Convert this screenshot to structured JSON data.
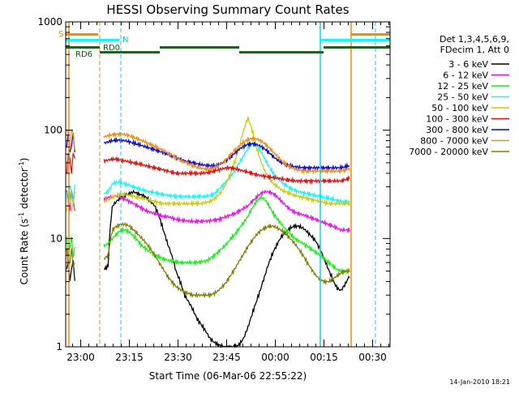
{
  "chart_data": {
    "type": "line",
    "title": "HESSI Observing Summary Count Rates",
    "xlabel": "Start Time (06-Mar-06 22:55:22)",
    "ylabel": "Count Rate (s",
    "ylabel_sup": "-1",
    "ylabel_tail": " detector",
    "ylabel_close": ")",
    "ylabel_sup2": "-1",
    "x_range_minutes": [
      0,
      100
    ],
    "y_scale": "log",
    "ylim": [
      1,
      1000
    ],
    "y_ticks": [
      {
        "value": 1,
        "label": "1"
      },
      {
        "value": 10,
        "label": "10"
      },
      {
        "value": 100,
        "label": "100"
      },
      {
        "value": 1000,
        "label": "1000"
      }
    ],
    "x_ticks": [
      {
        "minute": 4.63,
        "label": "23:00"
      },
      {
        "minute": 19.63,
        "label": "23:15"
      },
      {
        "minute": 34.63,
        "label": "23:30"
      },
      {
        "minute": 49.63,
        "label": "23:45"
      },
      {
        "minute": 64.63,
        "label": "00:00"
      },
      {
        "minute": 79.63,
        "label": "00:15"
      },
      {
        "minute": 94.63,
        "label": "00:30"
      }
    ],
    "legend_header": [
      "Det 1,3,4,5,6,9,",
      "FDecim 1, Att 0"
    ],
    "series": [
      {
        "name": "3 - 6 keV",
        "color": "#000000",
        "values": [
          5.2,
          5.5,
          20,
          22,
          24,
          25,
          26,
          27,
          26,
          25,
          24,
          22,
          20,
          16,
          12,
          9,
          7,
          5,
          4,
          3,
          2.6,
          2.2,
          1.8,
          1.6,
          1.4,
          1.2,
          1.1,
          1.05,
          1.0,
          1.0,
          1.0,
          1.0,
          1.05,
          1.2,
          1.5,
          2.0,
          2.6,
          3.4,
          4.5,
          6.0,
          7.5,
          9.0,
          10.5,
          11.5,
          12.5,
          13,
          13,
          12.5,
          11.5,
          10.5,
          9.5,
          8.0,
          6.5,
          5.2,
          4.2,
          3.5,
          3.3,
          3.8,
          4.5
        ]
      },
      {
        "name": "6 - 12 keV",
        "color": "#ff00ff",
        "values": [
          23,
          24,
          24,
          25,
          24,
          23,
          22,
          21,
          20,
          19,
          18,
          17.5,
          17,
          16.5,
          16,
          16,
          15.5,
          15,
          14.8,
          14.6,
          14.5,
          14.4,
          14.4,
          14.4,
          14.5,
          14.6,
          14.8,
          15,
          15.5,
          16,
          16.5,
          17,
          18,
          19,
          20,
          22,
          24,
          26,
          27,
          27,
          26,
          24,
          22,
          20,
          18.5,
          17.5,
          17,
          16.5,
          16,
          15.5,
          15,
          14.5,
          14,
          13.5,
          13,
          12.5,
          12,
          12,
          12
        ]
      },
      {
        "name": "12 - 25 keV",
        "color": "#00ff00",
        "values": [
          8.5,
          9.0,
          10,
          11,
          12,
          12,
          11.5,
          10.5,
          9.5,
          8.5,
          8.0,
          7.5,
          7.0,
          6.8,
          6.5,
          6.3,
          6.2,
          6.1,
          6.0,
          6.0,
          6.0,
          6.0,
          6.0,
          6.1,
          6.2,
          6.5,
          7.0,
          7.5,
          8.2,
          9.0,
          10,
          11,
          12.5,
          14,
          16,
          19,
          22,
          24,
          23,
          20,
          17,
          15,
          13.5,
          12,
          11,
          10,
          9.5,
          9.0,
          8.5,
          8.0,
          7.5,
          7.0,
          6.5,
          6.0,
          5.6,
          5.2,
          5.0,
          5.0,
          5.0
        ]
      },
      {
        "name": "25 - 50 keV",
        "color": "#00ffff",
        "values": [
          26,
          27,
          32,
          33,
          33,
          32,
          31,
          30,
          29,
          28,
          27.5,
          27,
          26.5,
          26,
          25.5,
          25,
          24.8,
          24.6,
          24.5,
          24.4,
          24.3,
          24.3,
          24.3,
          24.4,
          24.5,
          25,
          26,
          28,
          31,
          34,
          38,
          43,
          50,
          58,
          68,
          75,
          73,
          64,
          54,
          46,
          40,
          36,
          33,
          31,
          29,
          28,
          27,
          26.5,
          26,
          25.5,
          25,
          24.5,
          24,
          23.5,
          23,
          22.5,
          22,
          22,
          22
        ]
      },
      {
        "name": "50 - 100 keV",
        "color": "#cccc00",
        "values": [
          22,
          23,
          24,
          25,
          25.5,
          25.5,
          25,
          24.5,
          24,
          23.5,
          23,
          22.5,
          22,
          21.5,
          21,
          21,
          21,
          21,
          21,
          21,
          21,
          21,
          21,
          21,
          21.5,
          22,
          23,
          25,
          28,
          33,
          40,
          52,
          70,
          100,
          130,
          100,
          70,
          52,
          42,
          36,
          32,
          30,
          28,
          27,
          26,
          25,
          24.5,
          24,
          23.5,
          23,
          22.5,
          22,
          21.5,
          21,
          21,
          21,
          21,
          21,
          21
        ]
      },
      {
        "name": "100 - 300 keV",
        "color": "#ff0000",
        "values": [
          52,
          53,
          54,
          54,
          53,
          52,
          51,
          50,
          49,
          48,
          47,
          46,
          45,
          44,
          43,
          42,
          41,
          40,
          40,
          40,
          40,
          40,
          40,
          40,
          40.5,
          41,
          42,
          43,
          44,
          45,
          45,
          44,
          43,
          42,
          41,
          40,
          39,
          38,
          37.5,
          37,
          36.5,
          36,
          35.5,
          35,
          34.5,
          34,
          34,
          34,
          34,
          34,
          34,
          34,
          34,
          34,
          34,
          34,
          34,
          35,
          36
        ]
      },
      {
        "name": "300 - 800 keV",
        "color": "#0000ff",
        "values": [
          76,
          78,
          80,
          81,
          81,
          80,
          78,
          76,
          74,
          72,
          70,
          68,
          66,
          64,
          62,
          60,
          58,
          56,
          54,
          52,
          51,
          50,
          49,
          48,
          47.5,
          47,
          47,
          48,
          50,
          53,
          57,
          62,
          67,
          71,
          74,
          75,
          74,
          71,
          67,
          62,
          57,
          53,
          50,
          48,
          47,
          46,
          45.5,
          45,
          45,
          45,
          45,
          45,
          45,
          45,
          45,
          45,
          45,
          46,
          47
        ]
      },
      {
        "name": "800 - 7000 keV",
        "color": "#ff8800",
        "values": [
          87,
          89,
          91,
          92,
          92,
          91,
          89,
          86,
          83,
          80,
          77,
          74,
          71,
          68,
          65,
          62,
          59,
          56,
          53,
          51,
          49,
          47,
          45.5,
          44.5,
          44,
          44,
          45,
          47,
          50,
          54,
          60,
          66,
          72,
          78,
          82,
          84,
          83,
          80,
          75,
          69,
          63,
          57,
          52,
          48,
          45.5,
          44,
          43,
          42.5,
          42,
          42,
          42,
          42,
          42,
          42,
          42,
          42,
          42,
          43,
          44
        ]
      },
      {
        "name": "7000 - 20000 keV",
        "color": "#808000",
        "values": [
          6.5,
          7.0,
          12,
          13,
          13.5,
          13.5,
          13,
          12,
          11,
          10,
          9.0,
          8.0,
          7.0,
          6.0,
          5.2,
          4.5,
          4.0,
          3.6,
          3.4,
          3.2,
          3.1,
          3.0,
          3.0,
          3.0,
          3.0,
          3.0,
          3.1,
          3.3,
          3.6,
          4.0,
          4.6,
          5.3,
          6.2,
          7.2,
          8.4,
          9.6,
          10.8,
          11.8,
          12.5,
          13,
          13,
          12.5,
          11.8,
          11,
          10,
          9.0,
          8.0,
          7.0,
          6.0,
          5.2,
          4.6,
          4.2,
          4.0,
          4.0,
          4.2,
          4.5,
          4.8,
          5.0,
          5.0
        ]
      }
    ],
    "flag_labels": {
      "saa": "S",
      "night": "N",
      "rd0": "RD0",
      "rd6": "RD6"
    },
    "timestamp": "14-Jan-2010 18:21"
  }
}
